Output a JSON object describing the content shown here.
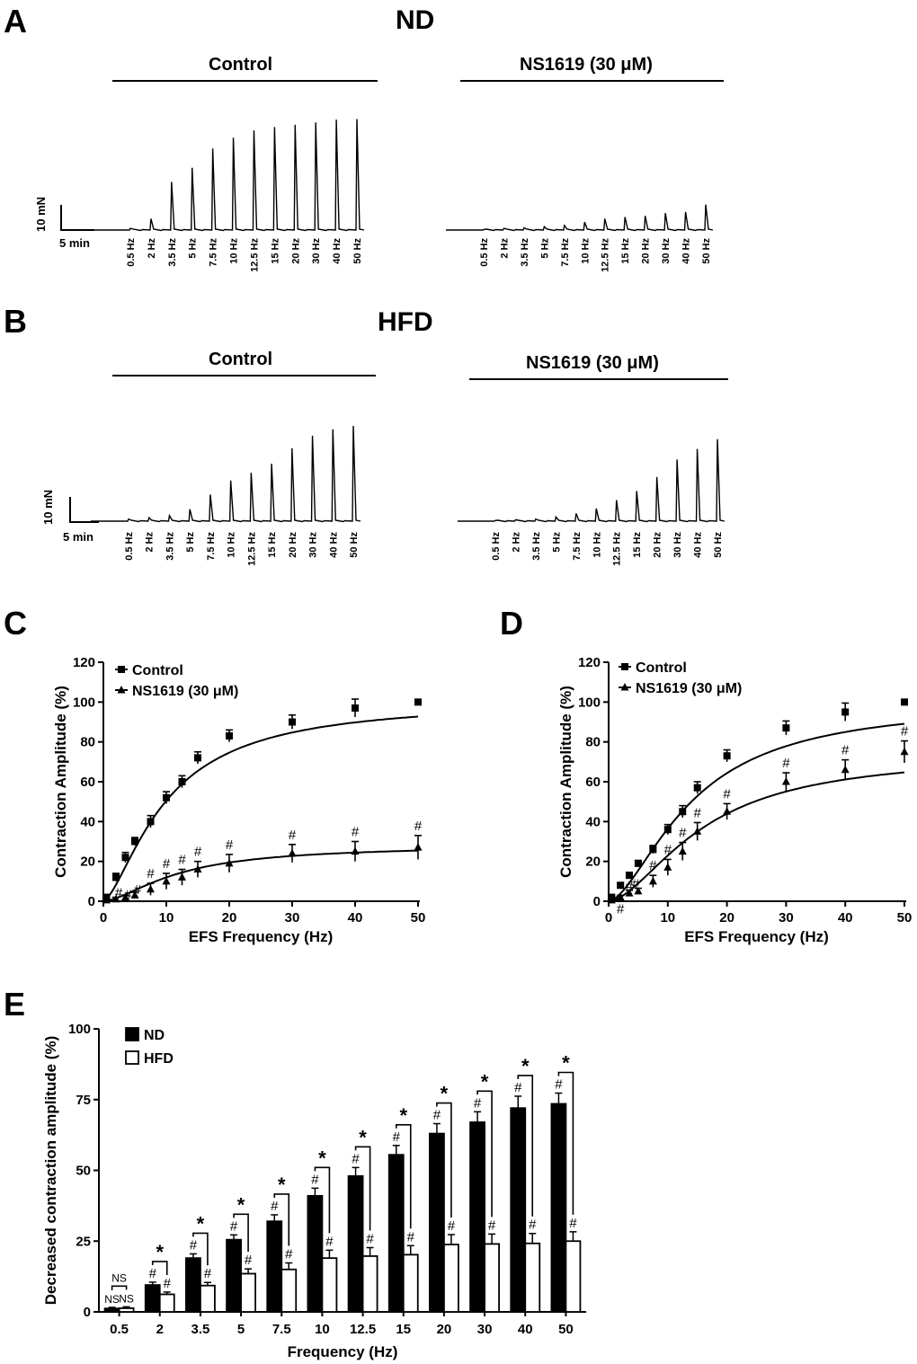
{
  "panels": {
    "A": {
      "label": "A",
      "condition": "ND",
      "control_label": "Control",
      "drug_label": "NS1619 (30 μM)",
      "scale_force": "10 mN",
      "scale_time": "5 min",
      "frequencies": [
        "0.5 Hz",
        "2 Hz",
        "3.5 Hz",
        "5 Hz",
        "7.5 Hz",
        "10 Hz",
        "12.5 Hz",
        "15 Hz",
        "20 Hz",
        "30 Hz",
        "40 Hz",
        "50 Hz"
      ]
    },
    "B": {
      "label": "B",
      "condition": "HFD",
      "control_label": "Control",
      "drug_label": "NS1619 (30 μM)",
      "scale_force": "10 mN",
      "scale_time": "5 min",
      "frequencies": [
        "0.5 Hz",
        "2 Hz",
        "3.5 Hz",
        "5 Hz",
        "7.5 Hz",
        "10 Hz",
        "12.5 Hz",
        "15 Hz",
        "20 Hz",
        "30 Hz",
        "40 Hz",
        "50 Hz"
      ]
    },
    "C": {
      "label": "C"
    },
    "D": {
      "label": "D"
    },
    "E": {
      "label": "E"
    }
  },
  "chart_data": [
    {
      "panel": "A",
      "type": "line",
      "kind": "trace",
      "series": [
        {
          "name": "Control",
          "values": [
            0.3,
            2.0,
            8.5,
            11.0,
            14.4,
            16.3,
            17.6,
            18.2,
            18.6,
            19.0,
            19.5,
            19.6
          ]
        },
        {
          "name": "NS1619 (30 μM)",
          "values": [
            0.1,
            0.3,
            0.4,
            0.6,
            0.8,
            1.4,
            2.0,
            2.3,
            2.5,
            3.0,
            3.2,
            4.5
          ]
        }
      ]
    },
    {
      "panel": "B",
      "type": "line",
      "kind": "trace",
      "series": [
        {
          "name": "Control",
          "values": [
            0.3,
            0.5,
            0.8,
            1.7,
            3.8,
            5.8,
            6.9,
            8.2,
            10.4,
            12.2,
            13.1,
            13.6
          ]
        },
        {
          "name": "NS1619 (30 μM)",
          "values": [
            0.1,
            0.2,
            0.3,
            0.6,
            1.1,
            1.8,
            3.0,
            4.3,
            6.3,
            8.8,
            10.3,
            11.7
          ]
        }
      ]
    },
    {
      "panel": "C",
      "type": "line",
      "xlabel": "EFS Frequency (Hz)",
      "ylabel": "Contraction Amplitude (%)",
      "xlim": [
        0,
        50
      ],
      "ylim": [
        0,
        120
      ],
      "xticks": [
        "0",
        "10",
        "20",
        "30",
        "40",
        "50"
      ],
      "yticks": [
        "0",
        "20",
        "40",
        "60",
        "80",
        "100",
        "120"
      ],
      "legend": "top-left",
      "series": [
        {
          "name": "Control",
          "marker": "square",
          "x": [
            0.5,
            2,
            3.5,
            5,
            7.5,
            10,
            12.5,
            15,
            20,
            30,
            40,
            50
          ],
          "y": [
            2,
            12,
            22,
            30,
            40,
            52,
            60,
            72,
            83,
            90,
            97,
            100
          ],
          "err": [
            1,
            2,
            2.5,
            2,
            3,
            3,
            3,
            3,
            3,
            3.5,
            4.5,
            0
          ]
        },
        {
          "name": "NS1619 (30 μM)",
          "marker": "triangle",
          "x": [
            0.5,
            2,
            3.5,
            5,
            7.5,
            10,
            12.5,
            15,
            20,
            30,
            40,
            50
          ],
          "y": [
            0.5,
            1,
            2,
            3,
            6,
            10,
            12,
            16,
            19,
            24,
            25,
            27
          ],
          "err": [
            0.5,
            1,
            1,
            1.5,
            3,
            4,
            4,
            4,
            4.5,
            4.5,
            5,
            6
          ]
        }
      ],
      "annotations": {
        "symbol": "#",
        "x": [
          2,
          3.5,
          5,
          7.5,
          10,
          12.5,
          15,
          20,
          30,
          40,
          50
        ]
      }
    },
    {
      "panel": "D",
      "type": "line",
      "xlabel": "EFS Frequency (Hz)",
      "ylabel": "Contraction Amplitude (%)",
      "xlim": [
        0,
        50
      ],
      "ylim": [
        0,
        120
      ],
      "xticks": [
        "0",
        "10",
        "20",
        "30",
        "40",
        "50"
      ],
      "yticks": [
        "0",
        "20",
        "40",
        "60",
        "80",
        "100",
        "120"
      ],
      "legend": "top-left",
      "series": [
        {
          "name": "Control",
          "marker": "square",
          "x": [
            0.5,
            2,
            3.5,
            5,
            7.5,
            10,
            12.5,
            15,
            20,
            30,
            40,
            50
          ],
          "y": [
            2,
            8,
            13,
            19,
            26,
            36,
            45,
            57,
            73,
            87,
            95,
            100
          ],
          "err": [
            1,
            1,
            1.5,
            1.5,
            2,
            2.5,
            3,
            3,
            3,
            3.5,
            4.5,
            0
          ]
        },
        {
          "name": "NS1619 (30 μM)",
          "marker": "triangle",
          "x": [
            0.5,
            2,
            3.5,
            5,
            7.5,
            10,
            12.5,
            15,
            20,
            30,
            40,
            50
          ],
          "y": [
            0.5,
            2,
            4,
            5,
            10,
            17,
            25,
            35,
            45,
            60,
            66,
            75
          ],
          "err": [
            0.5,
            1,
            1.5,
            1.5,
            3,
            4,
            4.5,
            4.5,
            4,
            4.5,
            5,
            5.5
          ]
        }
      ],
      "annotations": {
        "symbol": "#",
        "x": [
          2,
          3.5,
          5,
          7.5,
          10,
          12.5,
          15,
          20,
          30,
          40,
          50
        ]
      }
    },
    {
      "panel": "E",
      "type": "bar",
      "xlabel": "Frequency (Hz)",
      "ylabel": "Decreased contraction amplitude (%)",
      "ylim": [
        0,
        100
      ],
      "yticks": [
        "0",
        "25",
        "50",
        "75",
        "100"
      ],
      "categories": [
        "0.5",
        "2",
        "3.5",
        "5",
        "7.5",
        "10",
        "12.5",
        "15",
        "20",
        "30",
        "40",
        "50"
      ],
      "legend": "top-left",
      "series": [
        {
          "name": "ND",
          "color": "#000000",
          "values": [
            1.2,
            9.5,
            19,
            25.5,
            32,
            41,
            48,
            55.5,
            63,
            67,
            72,
            73.5
          ],
          "err": [
            0.4,
            1,
            1.5,
            1.7,
            2.3,
            2.7,
            3,
            3.3,
            3.5,
            3.7,
            4.2,
            3.8
          ]
        },
        {
          "name": "HFD",
          "color": "#ffffff",
          "values": [
            1.3,
            6.2,
            9.3,
            13.5,
            15,
            19,
            19.7,
            20.2,
            23.8,
            24,
            24.2,
            25
          ],
          "err": [
            0.5,
            0.8,
            1.1,
            1.7,
            2.3,
            2.8,
            3,
            3.2,
            3.5,
            3.5,
            3.5,
            3.3
          ]
        }
      ],
      "sig_between": [
        "NS",
        "*",
        "*",
        "*",
        "*",
        "*",
        "*",
        "*",
        "*",
        "*",
        "*",
        "*"
      ],
      "sig_within": [
        "NS",
        "#",
        "#",
        "#",
        "#",
        "#",
        "#",
        "#",
        "#",
        "#",
        "#",
        "#"
      ]
    }
  ]
}
